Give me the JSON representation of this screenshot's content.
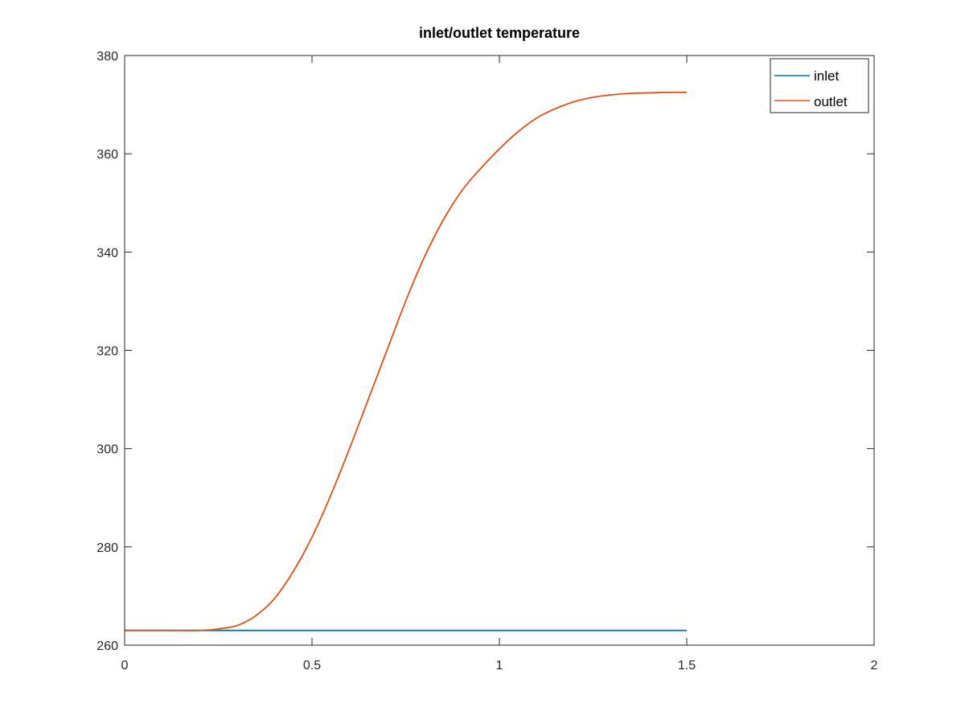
{
  "chart_data": {
    "type": "line",
    "title": "inlet/outlet temperature",
    "xlabel": "",
    "ylabel": "",
    "xlim": [
      0,
      2
    ],
    "ylim": [
      260,
      380
    ],
    "xticks": [
      0,
      0.5,
      1,
      1.5,
      2
    ],
    "xtick_labels": [
      "0",
      "0.5",
      "1",
      "1.5",
      "2"
    ],
    "yticks": [
      260,
      280,
      300,
      320,
      340,
      360,
      380
    ],
    "ytick_labels": [
      "260",
      "280",
      "300",
      "320",
      "340",
      "360",
      "380"
    ],
    "grid": false,
    "legend_position": "top-right",
    "series": [
      {
        "name": "inlet",
        "color": "#0072BD",
        "x": [
          0,
          0.25,
          0.5,
          0.75,
          1.0,
          1.25,
          1.5
        ],
        "y": [
          263,
          263,
          263,
          263,
          263,
          263,
          263
        ]
      },
      {
        "name": "outlet",
        "color": "#D95319",
        "x": [
          0,
          0.1,
          0.2,
          0.25,
          0.3,
          0.35,
          0.4,
          0.45,
          0.5,
          0.55,
          0.6,
          0.65,
          0.7,
          0.75,
          0.8,
          0.85,
          0.9,
          0.95,
          1.0,
          1.05,
          1.1,
          1.15,
          1.2,
          1.25,
          1.3,
          1.35,
          1.4,
          1.45,
          1.5
        ],
        "y": [
          263,
          263,
          263,
          263.3,
          264,
          266,
          269.5,
          275,
          282,
          290.5,
          300,
          310,
          320,
          330,
          339,
          346.5,
          352.5,
          357,
          361,
          364.5,
          367.3,
          369.2,
          370.6,
          371.5,
          372,
          372.3,
          372.4,
          372.5,
          372.5
        ]
      }
    ]
  }
}
